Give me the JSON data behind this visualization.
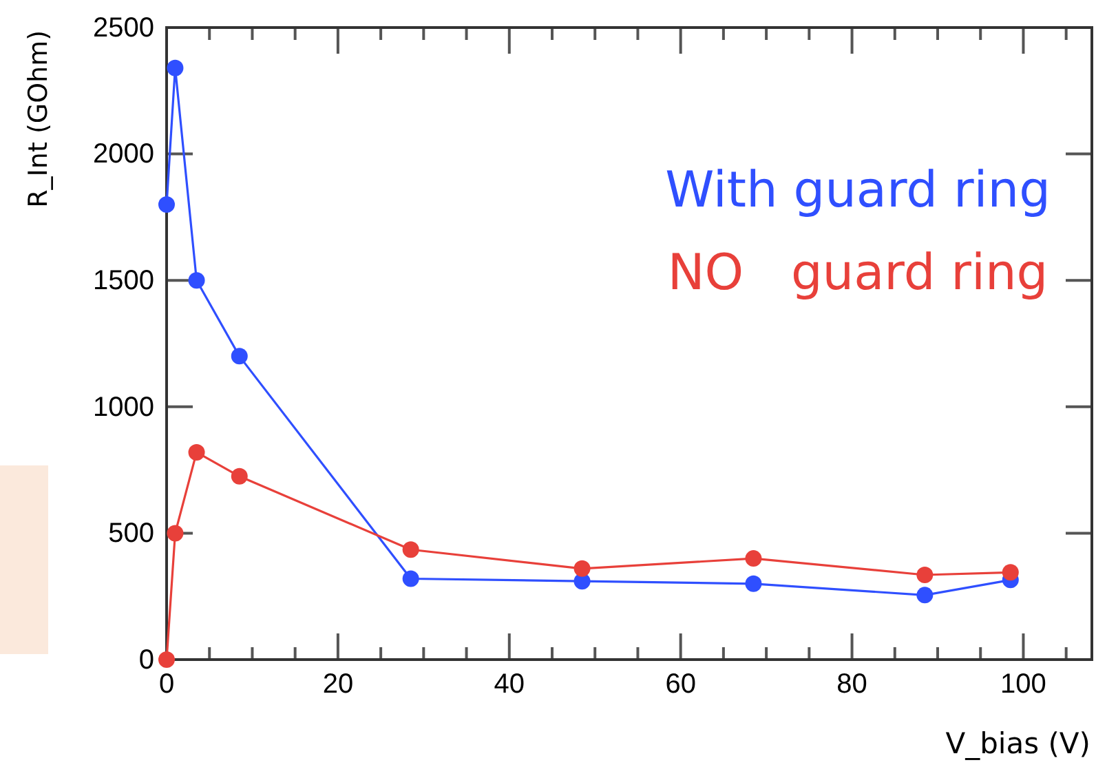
{
  "chart_data": {
    "type": "line",
    "xlabel": "V_bias (V)",
    "ylabel": "R_Int (GOhm)",
    "xlim": [
      0,
      108
    ],
    "xticks": [
      0,
      {
        "value": 5,
        "label": null
      },
      {
        "value": 10,
        "label": null
      },
      {
        "value": 15,
        "label": null
      },
      20,
      {
        "value": 25,
        "label": null
      },
      {
        "value": 30,
        "label": null
      },
      {
        "value": 35,
        "label": null
      },
      40,
      {
        "value": 45,
        "label": null
      },
      {
        "value": 50,
        "label": null
      },
      {
        "value": 55,
        "label": null
      },
      60,
      {
        "value": 65,
        "label": null
      },
      {
        "value": 70,
        "label": null
      },
      {
        "value": 75,
        "label": null
      },
      80,
      {
        "value": 85,
        "label": null
      },
      {
        "value": 90,
        "label": null
      },
      {
        "value": 95,
        "label": null
      },
      100,
      {
        "value": 105,
        "label": null
      }
    ],
    "ylim": [
      0,
      2500
    ],
    "yticks": [
      0,
      500,
      1000,
      1500,
      2000,
      2500
    ],
    "x": [
      0,
      1,
      3.5,
      8.5,
      28.5,
      48.5,
      68.5,
      88.5,
      98.5
    ],
    "series": [
      {
        "name": "With guard ring",
        "color": "#2f4fff",
        "values": [
          1800,
          2340,
          1500,
          1200,
          320,
          310,
          300,
          255,
          315
        ]
      },
      {
        "name": "NO   guard ring",
        "color": "#e8403a",
        "values": [
          0,
          500,
          820,
          725,
          435,
          360,
          400,
          335,
          345
        ]
      }
    ],
    "marker": "circle",
    "line_style": "solid",
    "legend": "top right",
    "grid": false
  }
}
